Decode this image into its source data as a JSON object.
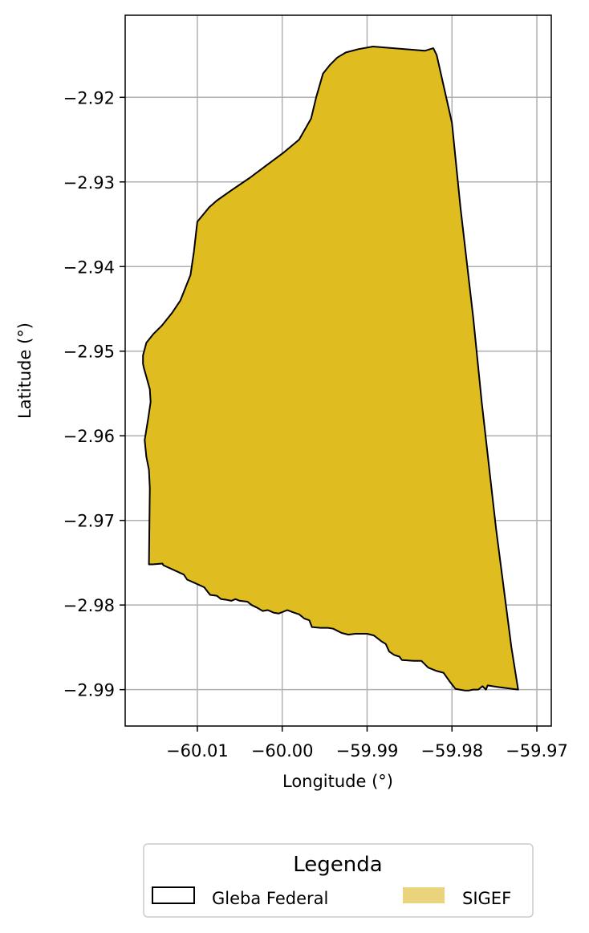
{
  "chart_data": {
    "type": "map",
    "xlabel": "Longitude (°)",
    "ylabel": "Latitude (°)",
    "xlim": [
      -60.0185,
      -59.9683
    ],
    "ylim": [
      -2.9943,
      -2.9103
    ],
    "x_ticks": [
      -60.01,
      -60.0,
      -59.99,
      -59.98,
      -59.97
    ],
    "x_tick_labels": [
      "−60.01",
      "−60.00",
      "−59.99",
      "−59.98",
      "−59.97"
    ],
    "y_ticks": [
      -2.92,
      -2.93,
      -2.94,
      -2.95,
      -2.96,
      -2.97,
      -2.98,
      -2.99
    ],
    "y_tick_labels": [
      "−2.92",
      "−2.93",
      "−2.94",
      "−2.95",
      "−2.96",
      "−2.97",
      "−2.98",
      "−2.99"
    ],
    "grid": true,
    "legend": {
      "title": "Legenda",
      "placement": "bottom-center",
      "entries": [
        {
          "label": "Gleba Federal",
          "style": "outline",
          "color": "#000000"
        },
        {
          "label": "SIGEF",
          "style": "fill",
          "color": "#e9d37d"
        }
      ]
    },
    "colors": {
      "polygon_fill": "#dfbd20",
      "polygon_edge": "#000000",
      "grid": "#b0b0b0"
    },
    "polygon": [
      [
        -59.9893,
        -2.914
      ],
      [
        -59.9832,
        -2.9145
      ],
      [
        -59.9822,
        -2.9142
      ],
      [
        -59.9818,
        -2.915
      ],
      [
        -59.98,
        -2.923
      ],
      [
        -59.979,
        -2.933
      ],
      [
        -59.9775,
        -2.946
      ],
      [
        -59.9765,
        -2.956
      ],
      [
        -59.9748,
        -2.971
      ],
      [
        -59.973,
        -2.985
      ],
      [
        -59.9722,
        -2.99
      ],
      [
        -59.9745,
        -2.9897
      ],
      [
        -59.9752,
        -2.9896
      ],
      [
        -59.9758,
        -2.9895
      ],
      [
        -59.976,
        -2.99
      ],
      [
        -59.9764,
        -2.9896
      ],
      [
        -59.9769,
        -2.99
      ],
      [
        -59.9775,
        -2.99
      ],
      [
        -59.978,
        -2.9901
      ],
      [
        -59.9785,
        -2.9901
      ],
      [
        -59.9791,
        -2.99
      ],
      [
        -59.9796,
        -2.9899
      ],
      [
        -59.9803,
        -2.989
      ],
      [
        -59.981,
        -2.988
      ],
      [
        -59.9818,
        -2.9878
      ],
      [
        -59.9828,
        -2.9874
      ],
      [
        -59.9836,
        -2.9866
      ],
      [
        -59.9845,
        -2.9866
      ],
      [
        -59.9859,
        -2.9865
      ],
      [
        -59.9862,
        -2.9861
      ],
      [
        -59.9868,
        -2.9859
      ],
      [
        -59.9874,
        -2.9855
      ],
      [
        -59.9878,
        -2.9846
      ],
      [
        -59.9883,
        -2.9843
      ],
      [
        -59.9892,
        -2.9836
      ],
      [
        -59.99,
        -2.9834
      ],
      [
        -59.9914,
        -2.9834
      ],
      [
        -59.9922,
        -2.9835
      ],
      [
        -59.993,
        -2.9833
      ],
      [
        -59.994,
        -2.9828
      ],
      [
        -59.9946,
        -2.9827
      ],
      [
        -59.9955,
        -2.9827
      ],
      [
        -59.9965,
        -2.9826
      ],
      [
        -59.9968,
        -2.9818
      ],
      [
        -59.9974,
        -2.9816
      ],
      [
        -59.998,
        -2.9811
      ],
      [
        -59.9986,
        -2.9809
      ],
      [
        -59.9994,
        -2.9806
      ],
      [
        -60.0004,
        -2.981
      ],
      [
        -60.001,
        -2.9809
      ],
      [
        -60.0017,
        -2.9806
      ],
      [
        -60.0023,
        -2.9807
      ],
      [
        -60.003,
        -2.9803
      ],
      [
        -60.0036,
        -2.98
      ],
      [
        -60.0041,
        -2.9796
      ],
      [
        -60.005,
        -2.9795
      ],
      [
        -60.0055,
        -2.9793
      ],
      [
        -60.006,
        -2.9795
      ],
      [
        -60.0065,
        -2.9794
      ],
      [
        -60.0072,
        -2.9793
      ],
      [
        -60.0077,
        -2.9789
      ],
      [
        -60.0085,
        -2.9788
      ],
      [
        -60.0092,
        -2.9779
      ],
      [
        -60.0103,
        -2.9774
      ],
      [
        -60.0112,
        -2.977
      ],
      [
        -60.0116,
        -2.9764
      ],
      [
        -60.014,
        -2.9753
      ],
      [
        -60.0141,
        -2.9751
      ],
      [
        -60.0153,
        -2.9752
      ],
      [
        -60.0157,
        -2.9752
      ],
      [
        -60.0156,
        -2.9662
      ],
      [
        -60.0157,
        -2.964
      ],
      [
        -60.016,
        -2.9625
      ],
      [
        -60.0162,
        -2.9605
      ],
      [
        -60.0158,
        -2.958
      ],
      [
        -60.0155,
        -2.956
      ],
      [
        -60.0156,
        -2.9545
      ],
      [
        -60.0159,
        -2.9534
      ],
      [
        -60.0161,
        -2.9527
      ],
      [
        -60.0163,
        -2.952
      ],
      [
        -60.0164,
        -2.9515
      ],
      [
        -60.0164,
        -2.9505
      ],
      [
        -60.016,
        -2.949
      ],
      [
        -60.0152,
        -2.948
      ],
      [
        -60.0142,
        -2.947
      ],
      [
        -60.013,
        -2.9455
      ],
      [
        -60.012,
        -2.944
      ],
      [
        -60.0108,
        -2.941
      ],
      [
        -60.0104,
        -2.9382
      ],
      [
        -60.01,
        -2.9347
      ],
      [
        -60.0086,
        -2.933
      ],
      [
        -60.0077,
        -2.9322
      ],
      [
        -60.006,
        -2.931
      ],
      [
        -60.0038,
        -2.9295
      ],
      [
        -60.0018,
        -2.928
      ],
      [
        -59.9998,
        -2.9265
      ],
      [
        -59.998,
        -2.925
      ],
      [
        -59.9966,
        -2.9225
      ],
      [
        -59.996,
        -2.92
      ],
      [
        -59.9952,
        -2.9172
      ],
      [
        -59.9944,
        -2.9162
      ],
      [
        -59.9935,
        -2.9153
      ],
      [
        -59.9925,
        -2.9147
      ],
      [
        -59.991,
        -2.9143
      ],
      [
        -59.9893,
        -2.914
      ]
    ]
  }
}
